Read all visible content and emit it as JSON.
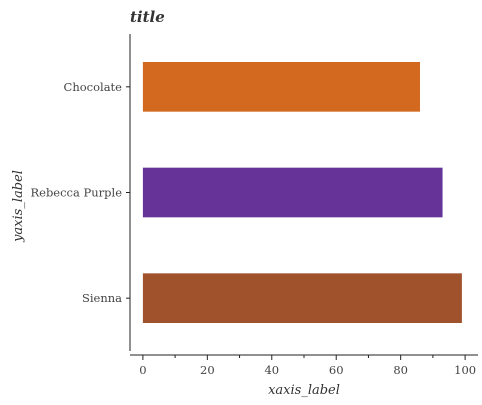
{
  "chart_data": {
    "type": "bar",
    "orientation": "horizontal",
    "title": "title",
    "xlabel": "xaxis_label",
    "ylabel": "yaxis_label",
    "categories": [
      "Sienna",
      "Rebecca Purple",
      "Chocolate"
    ],
    "values": [
      99,
      93,
      86
    ],
    "colors": [
      "#A0522D",
      "#663399",
      "#D2691E"
    ],
    "xlim": [
      -4,
      104
    ],
    "xticks": [
      0,
      20,
      40,
      60,
      80,
      100
    ],
    "grid": false,
    "legend": "none"
  }
}
